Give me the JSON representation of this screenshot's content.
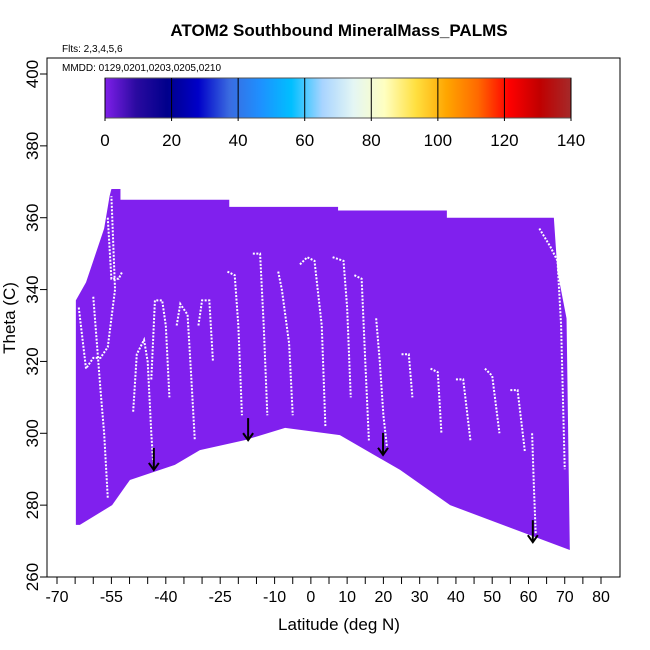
{
  "chart_data": {
    "type": "scatter",
    "title": "ATOM2 Southbound MineralMass_PALMS",
    "subtitle_flights": "Flts: 2,3,4,5,6",
    "subtitle_dates": "MMDD: 0129,0201,0203,0205,0210",
    "xlabel": "Latitude (deg N)",
    "ylabel": "Theta (C)",
    "xlim": [
      -70,
      80
    ],
    "ylim": [
      260,
      400
    ],
    "x_ticks": [
      -70,
      -55,
      -40,
      -25,
      -10,
      0,
      10,
      20,
      30,
      40,
      50,
      60,
      70,
      80
    ],
    "y_ticks": [
      260,
      280,
      300,
      320,
      340,
      360,
      380,
      400
    ],
    "colorbar": {
      "range": [
        0,
        140
      ],
      "ticks": [
        0,
        20,
        40,
        60,
        80,
        100,
        120,
        140
      ],
      "colors": [
        "#7f1fe9",
        "#2a0aa0",
        "#00008b",
        "#0000c8",
        "#3a6be0",
        "#1e90ff",
        "#00bfff",
        "#a8d4ff",
        "#e4f6f4",
        "#ffffc0",
        "#ffe040",
        "#ffa500",
        "#ff6a00",
        "#ff0000",
        "#c00000",
        "#a52a2a"
      ]
    },
    "data_color": "#8020ee",
    "data_region": [
      [
        -64.8,
        337
      ],
      [
        -62,
        342
      ],
      [
        -60,
        348
      ],
      [
        -57,
        357
      ],
      [
        -55.5,
        366
      ],
      [
        -55,
        368
      ],
      [
        -52.5,
        368
      ],
      [
        -52.5,
        365
      ],
      [
        -22.5,
        365
      ],
      [
        -22.5,
        363
      ],
      [
        7.5,
        363
      ],
      [
        7.5,
        362
      ],
      [
        37.5,
        362
      ],
      [
        37.5,
        360
      ],
      [
        67,
        360
      ],
      [
        68,
        345
      ],
      [
        70.5,
        332
      ],
      [
        71.4,
        267.5
      ],
      [
        38.4,
        280
      ],
      [
        24.6,
        289.8
      ],
      [
        8,
        299.5
      ],
      [
        -7.1,
        301.5
      ],
      [
        -18.2,
        298.1
      ],
      [
        -30.6,
        295.3
      ],
      [
        -37.5,
        291.2
      ],
      [
        -49.9,
        287
      ],
      [
        -54.8,
        280
      ],
      [
        -63.7,
        274.5
      ],
      [
        -64.8,
        274.5
      ]
    ],
    "trace_highlights": [
      [
        [
          -64,
          335
        ],
        [
          -62,
          318
        ],
        [
          -60,
          321
        ],
        [
          -58,
          321
        ],
        [
          -56,
          324
        ],
        [
          -54,
          340
        ],
        [
          -55,
          366
        ]
      ],
      [
        [
          -56,
          360
        ],
        [
          -55,
          343
        ],
        [
          -53,
          343
        ],
        [
          -52,
          345
        ]
      ],
      [
        [
          -60,
          338
        ],
        [
          -58,
          312
        ],
        [
          -57,
          300
        ],
        [
          -56,
          282
        ]
      ],
      [
        [
          -49,
          306
        ],
        [
          -48,
          322
        ],
        [
          -46,
          326
        ],
        [
          -45,
          320
        ],
        [
          -44,
          300
        ],
        [
          -43.5,
          292
        ]
      ],
      [
        [
          -44,
          315
        ],
        [
          -43,
          337
        ],
        [
          -41,
          337
        ],
        [
          -40,
          330
        ],
        [
          -39,
          310
        ]
      ],
      [
        [
          -37,
          330
        ],
        [
          -36,
          336
        ],
        [
          -34,
          333
        ],
        [
          -33,
          316
        ],
        [
          -32,
          298
        ]
      ],
      [
        [
          -31,
          330
        ],
        [
          -30,
          337
        ],
        [
          -28,
          337
        ],
        [
          -27,
          320
        ]
      ],
      [
        [
          -23,
          345
        ],
        [
          -21,
          344
        ],
        [
          -20,
          330
        ],
        [
          -19,
          305
        ]
      ],
      [
        [
          -16,
          350
        ],
        [
          -14,
          350
        ],
        [
          -13,
          330
        ],
        [
          -12,
          305
        ]
      ],
      [
        [
          -9,
          345
        ],
        [
          -8,
          340
        ],
        [
          -6,
          325
        ],
        [
          -5,
          305
        ]
      ],
      [
        [
          -3,
          347
        ],
        [
          -1,
          349
        ],
        [
          1,
          348
        ],
        [
          3,
          330
        ],
        [
          4,
          302
        ]
      ],
      [
        [
          6,
          349
        ],
        [
          9,
          348
        ],
        [
          10,
          335
        ],
        [
          11,
          310
        ]
      ],
      [
        [
          12,
          344
        ],
        [
          14,
          343
        ],
        [
          15,
          320
        ],
        [
          16,
          298
        ]
      ],
      [
        [
          18,
          332
        ],
        [
          19,
          320
        ],
        [
          20,
          305
        ],
        [
          21,
          296
        ]
      ],
      [
        [
          25,
          322
        ],
        [
          27,
          322
        ],
        [
          28,
          310
        ]
      ],
      [
        [
          33,
          318
        ],
        [
          35,
          317
        ],
        [
          36,
          300
        ]
      ],
      [
        [
          40,
          315
        ],
        [
          42,
          315
        ],
        [
          44,
          298
        ]
      ],
      [
        [
          48,
          318
        ],
        [
          50,
          316
        ],
        [
          52,
          300
        ]
      ],
      [
        [
          55,
          312
        ],
        [
          57,
          312
        ],
        [
          59,
          295
        ]
      ],
      [
        [
          63,
          357
        ],
        [
          66,
          352
        ],
        [
          68,
          348
        ],
        [
          69,
          330
        ],
        [
          70,
          290
        ]
      ],
      [
        [
          61,
          300
        ],
        [
          61.5,
          285
        ],
        [
          62,
          272
        ]
      ]
    ],
    "arrows": [
      [
        -43.3,
        289.8
      ],
      [
        -17.3,
        298.1
      ],
      [
        19.9,
        294
      ],
      [
        61.2,
        269.7
      ]
    ]
  }
}
